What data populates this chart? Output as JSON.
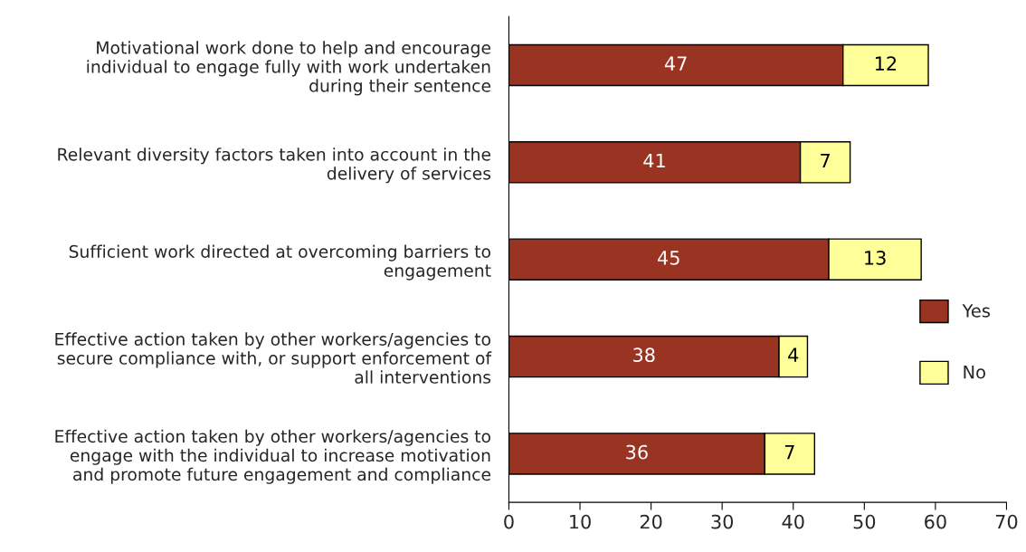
{
  "chart_data": {
    "type": "bar",
    "orientation": "horizontal",
    "stacked": true,
    "categories": [
      "Motivational work done to help and encourage individual to engage fully with work undertaken during their sentence",
      "Relevant diversity factors taken into account in the delivery of services",
      "Sufficient work directed at overcoming barriers to engagement",
      "Effective action taken by other workers/agencies to secure compliance with, or support enforcement of all interventions",
      "Effective action taken by other workers/agencies to engage with the individual to increase motivation and promote future engagement and compliance"
    ],
    "series": [
      {
        "name": "Yes",
        "color": "#993322",
        "values": [
          47,
          41,
          45,
          38,
          36
        ]
      },
      {
        "name": "No",
        "color": "#ffff99",
        "values": [
          12,
          7,
          13,
          4,
          7
        ]
      }
    ],
    "xlim": [
      0,
      70
    ],
    "xticks": [
      0,
      10,
      20,
      30,
      40,
      50,
      60,
      70
    ],
    "data_labels": true,
    "legend": "right",
    "grid": false
  }
}
